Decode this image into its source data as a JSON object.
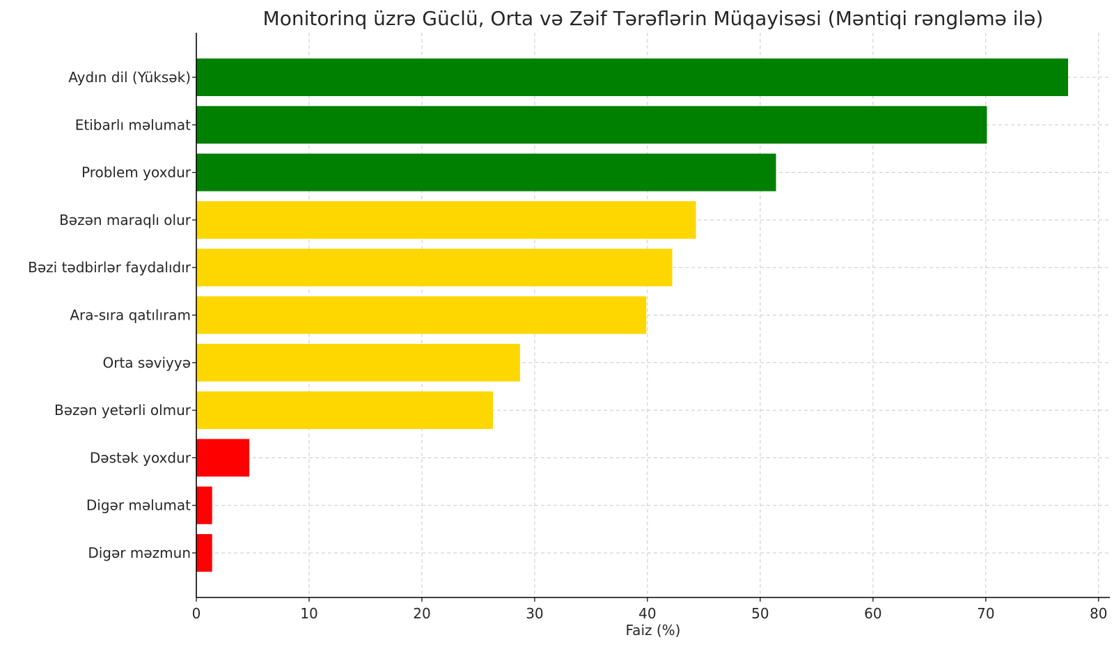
{
  "chart_data": {
    "type": "bar",
    "orientation": "horizontal",
    "title": "Monitorinq üzrə Güclü, Orta və Zəif Tərəflərin Müqayisəsi (Məntiqi rəngləmə ilə)",
    "xlabel": "Faiz (%)",
    "ylabel": "",
    "xlim": [
      0,
      81
    ],
    "xticks": [
      0,
      10,
      20,
      30,
      40,
      50,
      60,
      70,
      80
    ],
    "grid": true,
    "colors": {
      "strong": "#008000",
      "medium": "#FFD700",
      "weak": "#FF0000"
    },
    "categories": [
      "Aydın dil (Yüksək)",
      "Etibarlı məlumat",
      "Problem yoxdur",
      "Bəzən maraqlı olur",
      "Bəzi tədbirlər faydalıdır",
      "Ara-sıra qatılıram",
      "Orta səviyyə",
      "Bəzən yetərli olmur",
      "Dəstək yoxdur",
      "Digər məlumat",
      "Digər məzmun"
    ],
    "values": [
      77.3,
      70.1,
      51.4,
      44.3,
      42.2,
      39.9,
      28.7,
      26.3,
      4.7,
      1.4,
      1.4
    ],
    "groups": [
      "strong",
      "strong",
      "strong",
      "medium",
      "medium",
      "medium",
      "medium",
      "medium",
      "weak",
      "weak",
      "weak"
    ]
  }
}
